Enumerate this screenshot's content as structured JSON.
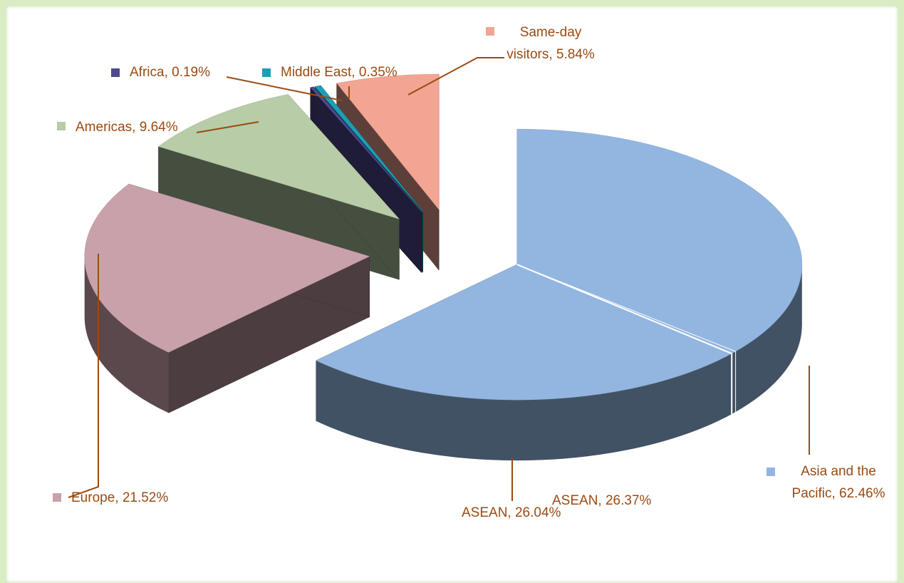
{
  "chart_data": {
    "type": "pie3d",
    "value_labels": [
      "Asia and the Pacific, 62.46%",
      "Europe, 21.52%",
      "Americas, 9.64%",
      "Africa, 0.19%",
      "Middle East, 0.35%",
      "Same-day visitors, 5.84%"
    ],
    "values": [
      62.46,
      21.52,
      9.64,
      0.19,
      0.35,
      5.84
    ],
    "colors": [
      "#93b6e0",
      "#c9a1ab",
      "#b7cca7",
      "#4e4a8e",
      "#1b9fb6",
      "#f3a593"
    ],
    "annotations": [
      {
        "text": "ASEAN, 26.04%",
        "value": 26.04
      },
      {
        "text": "ASEAN, 26.37%",
        "value": 26.37
      }
    ]
  }
}
